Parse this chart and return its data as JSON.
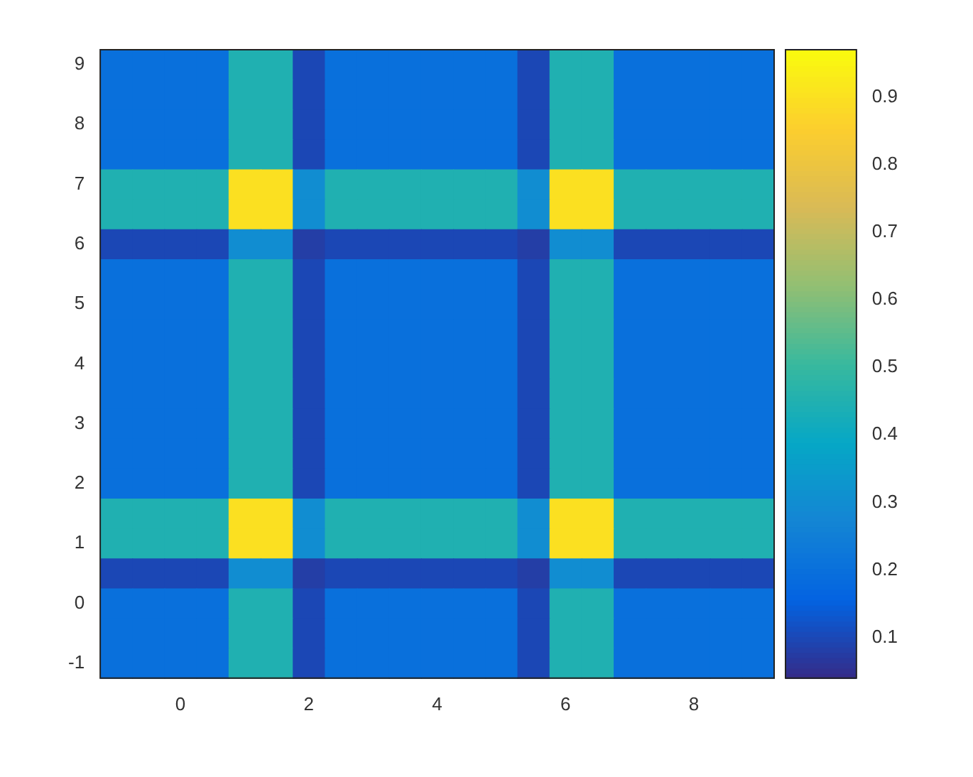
{
  "chart_data": {
    "type": "heatmap",
    "categories": [
      null,
      null,
      "0",
      null,
      null,
      null,
      "2",
      null,
      null,
      null,
      "4",
      null,
      null,
      null,
      "6",
      null,
      null,
      null,
      "8",
      null,
      null
    ],
    "y_categories": [
      "9",
      null,
      "8",
      null,
      "7",
      null,
      "6",
      null,
      "5",
      null,
      "4",
      null,
      "3",
      null,
      "2",
      null,
      "1",
      null,
      "0",
      null,
      "-1"
    ],
    "clim": [
      0.04,
      0.97
    ],
    "cticks": [
      0.1,
      0.2,
      0.3,
      0.4,
      0.5,
      0.6,
      0.7,
      0.8,
      0.9
    ],
    "cells": [
      [
        0.2,
        0.2,
        0.2,
        0.2,
        0.45,
        0.45,
        0.1,
        0.2,
        0.2,
        0.2,
        0.2,
        0.2,
        0.2,
        0.1,
        0.45,
        0.45,
        0.2,
        0.2,
        0.2,
        0.2,
        0.2
      ],
      [
        0.2,
        0.2,
        0.2,
        0.2,
        0.45,
        0.45,
        0.1,
        0.2,
        0.2,
        0.2,
        0.2,
        0.2,
        0.2,
        0.1,
        0.45,
        0.45,
        0.2,
        0.2,
        0.2,
        0.2,
        0.2
      ],
      [
        0.2,
        0.2,
        0.2,
        0.2,
        0.45,
        0.45,
        0.1,
        0.2,
        0.2,
        0.2,
        0.2,
        0.2,
        0.2,
        0.1,
        0.45,
        0.45,
        0.2,
        0.2,
        0.2,
        0.2,
        0.2
      ],
      [
        0.2,
        0.2,
        0.2,
        0.2,
        0.45,
        0.45,
        0.1,
        0.2,
        0.2,
        0.2,
        0.2,
        0.2,
        0.2,
        0.1,
        0.45,
        0.45,
        0.2,
        0.2,
        0.2,
        0.2,
        0.2
      ],
      [
        0.45,
        0.45,
        0.45,
        0.45,
        0.9,
        0.9,
        0.3,
        0.45,
        0.45,
        0.45,
        0.45,
        0.45,
        0.45,
        0.3,
        0.9,
        0.9,
        0.45,
        0.45,
        0.45,
        0.45,
        0.45
      ],
      [
        0.45,
        0.45,
        0.45,
        0.45,
        0.9,
        0.9,
        0.3,
        0.45,
        0.45,
        0.45,
        0.45,
        0.45,
        0.45,
        0.3,
        0.9,
        0.9,
        0.45,
        0.45,
        0.45,
        0.45,
        0.45
      ],
      [
        0.1,
        0.1,
        0.1,
        0.1,
        0.3,
        0.3,
        0.08,
        0.1,
        0.1,
        0.1,
        0.1,
        0.1,
        0.1,
        0.08,
        0.3,
        0.3,
        0.1,
        0.1,
        0.1,
        0.1,
        0.1
      ],
      [
        0.2,
        0.2,
        0.2,
        0.2,
        0.45,
        0.45,
        0.1,
        0.2,
        0.2,
        0.2,
        0.2,
        0.2,
        0.2,
        0.1,
        0.45,
        0.45,
        0.2,
        0.2,
        0.2,
        0.2,
        0.2
      ],
      [
        0.2,
        0.2,
        0.2,
        0.2,
        0.45,
        0.45,
        0.1,
        0.2,
        0.2,
        0.2,
        0.2,
        0.2,
        0.2,
        0.1,
        0.45,
        0.45,
        0.2,
        0.2,
        0.2,
        0.2,
        0.2
      ],
      [
        0.2,
        0.2,
        0.2,
        0.2,
        0.45,
        0.45,
        0.1,
        0.2,
        0.2,
        0.2,
        0.2,
        0.2,
        0.2,
        0.1,
        0.45,
        0.45,
        0.2,
        0.2,
        0.2,
        0.2,
        0.2
      ],
      [
        0.2,
        0.2,
        0.2,
        0.2,
        0.45,
        0.45,
        0.1,
        0.2,
        0.2,
        0.2,
        0.2,
        0.2,
        0.2,
        0.1,
        0.45,
        0.45,
        0.2,
        0.2,
        0.2,
        0.2,
        0.2
      ],
      [
        0.2,
        0.2,
        0.2,
        0.2,
        0.45,
        0.45,
        0.1,
        0.2,
        0.2,
        0.2,
        0.2,
        0.2,
        0.2,
        0.1,
        0.45,
        0.45,
        0.2,
        0.2,
        0.2,
        0.2,
        0.2
      ],
      [
        0.2,
        0.2,
        0.2,
        0.2,
        0.45,
        0.45,
        0.1,
        0.2,
        0.2,
        0.2,
        0.2,
        0.2,
        0.2,
        0.1,
        0.45,
        0.45,
        0.2,
        0.2,
        0.2,
        0.2,
        0.2
      ],
      [
        0.2,
        0.2,
        0.2,
        0.2,
        0.45,
        0.45,
        0.1,
        0.2,
        0.2,
        0.2,
        0.2,
        0.2,
        0.2,
        0.1,
        0.45,
        0.45,
        0.2,
        0.2,
        0.2,
        0.2,
        0.2
      ],
      [
        0.2,
        0.2,
        0.2,
        0.2,
        0.45,
        0.45,
        0.1,
        0.2,
        0.2,
        0.2,
        0.2,
        0.2,
        0.2,
        0.1,
        0.45,
        0.45,
        0.2,
        0.2,
        0.2,
        0.2,
        0.2
      ],
      [
        0.45,
        0.45,
        0.45,
        0.45,
        0.9,
        0.9,
        0.3,
        0.45,
        0.45,
        0.45,
        0.45,
        0.45,
        0.45,
        0.3,
        0.9,
        0.9,
        0.45,
        0.45,
        0.45,
        0.45,
        0.45
      ],
      [
        0.45,
        0.45,
        0.45,
        0.45,
        0.9,
        0.9,
        0.3,
        0.45,
        0.45,
        0.45,
        0.45,
        0.45,
        0.45,
        0.3,
        0.9,
        0.9,
        0.45,
        0.45,
        0.45,
        0.45,
        0.45
      ],
      [
        0.1,
        0.1,
        0.1,
        0.1,
        0.3,
        0.3,
        0.08,
        0.1,
        0.1,
        0.1,
        0.1,
        0.1,
        0.1,
        0.08,
        0.3,
        0.3,
        0.1,
        0.1,
        0.1,
        0.1,
        0.1
      ],
      [
        0.2,
        0.2,
        0.2,
        0.2,
        0.45,
        0.45,
        0.1,
        0.2,
        0.2,
        0.2,
        0.2,
        0.2,
        0.2,
        0.1,
        0.45,
        0.45,
        0.2,
        0.2,
        0.2,
        0.2,
        0.2
      ],
      [
        0.2,
        0.2,
        0.2,
        0.2,
        0.45,
        0.45,
        0.1,
        0.2,
        0.2,
        0.2,
        0.2,
        0.2,
        0.2,
        0.1,
        0.45,
        0.45,
        0.2,
        0.2,
        0.2,
        0.2,
        0.2
      ],
      [
        0.2,
        0.2,
        0.2,
        0.2,
        0.45,
        0.45,
        0.1,
        0.2,
        0.2,
        0.2,
        0.2,
        0.2,
        0.2,
        0.1,
        0.45,
        0.45,
        0.2,
        0.2,
        0.2,
        0.2,
        0.2
      ]
    ]
  }
}
